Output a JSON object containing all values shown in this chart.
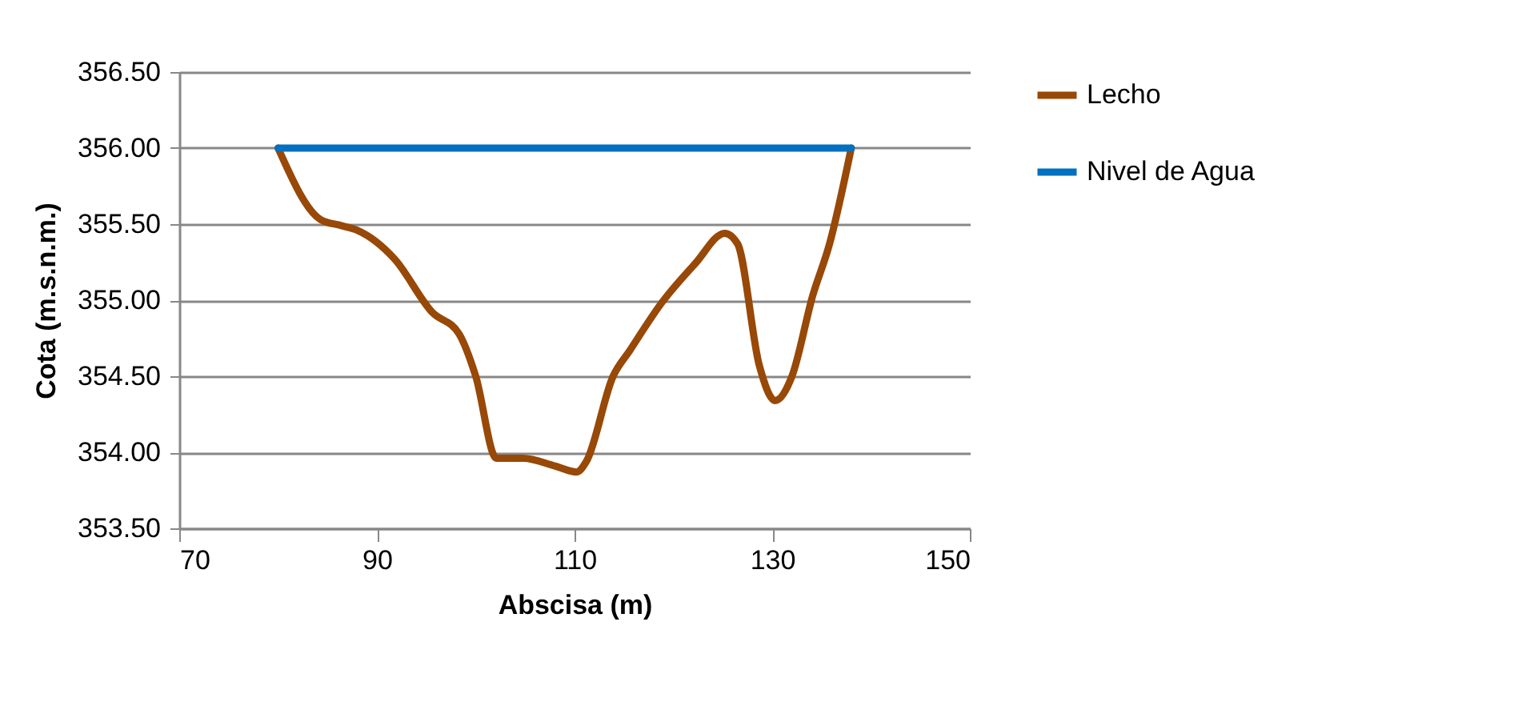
{
  "chart_data": {
    "type": "line",
    "xlabel": "Abscisa (m)",
    "ylabel": "Cota (m.s.n.m.)",
    "xlim": [
      70,
      150
    ],
    "xticks": [
      70,
      90,
      110,
      130,
      150
    ],
    "ylim": [
      353.5,
      356.5
    ],
    "yticks": [
      {
        "value": 353.5,
        "label": "353.50"
      },
      {
        "value": 354,
        "label": "354.00"
      },
      {
        "value": 354.5,
        "label": "354.50"
      },
      {
        "value": 355,
        "label": "355.00"
      },
      {
        "value": 355.5,
        "label": "355.50"
      },
      {
        "value": 356,
        "label": "356.00"
      },
      {
        "value": 356.5,
        "label": "356.50"
      }
    ],
    "grid": "y",
    "legend": "right",
    "marker": "none",
    "line_style": "solid",
    "series": [
      {
        "name": "Lecho",
        "color": "#984807",
        "x": [
          80,
          84.3,
          86.4,
          88,
          91.8,
          95.6,
          98.3,
          100,
          102.1,
          104.8,
          108,
          110.2,
          111.2,
          113.9,
          115.6,
          118.9,
          122.2,
          125.2,
          126.5,
          128.7,
          130.3,
          132,
          134.1,
          135.8,
          138
        ],
        "values": [
          356.0,
          355.53,
          355.49,
          355.46,
          355.27,
          354.92,
          354.78,
          354.5,
          353.96,
          353.96,
          353.91,
          353.87,
          353.94,
          354.5,
          354.67,
          354.99,
          355.24,
          355.44,
          355.37,
          354.57,
          354.34,
          354.5,
          355.03,
          355.37,
          356.0
        ]
      },
      {
        "name": "Nivel de Agua",
        "color": "#0070c0",
        "x": [
          80,
          138
        ],
        "values": [
          356.0,
          356.0
        ]
      }
    ]
  }
}
